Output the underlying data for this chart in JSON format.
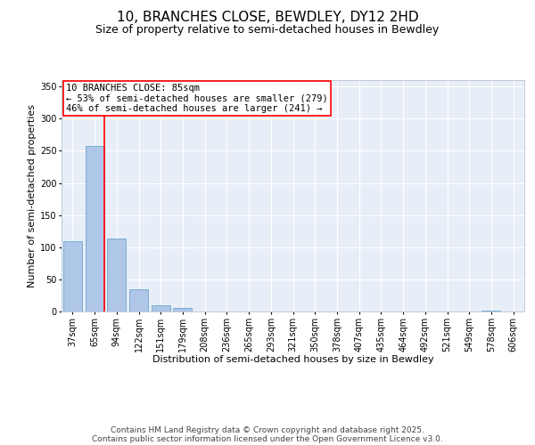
{
  "title_line1": "10, BRANCHES CLOSE, BEWDLEY, DY12 2HD",
  "title_line2": "Size of property relative to semi-detached houses in Bewdley",
  "xlabel": "Distribution of semi-detached houses by size in Bewdley",
  "ylabel": "Number of semi-detached properties",
  "categories": [
    "37sqm",
    "65sqm",
    "94sqm",
    "122sqm",
    "151sqm",
    "179sqm",
    "208sqm",
    "236sqm",
    "265sqm",
    "293sqm",
    "321sqm",
    "350sqm",
    "378sqm",
    "407sqm",
    "435sqm",
    "464sqm",
    "492sqm",
    "521sqm",
    "549sqm",
    "578sqm",
    "606sqm"
  ],
  "values": [
    109,
    258,
    113,
    34,
    10,
    5,
    0,
    0,
    0,
    0,
    0,
    0,
    0,
    0,
    0,
    0,
    0,
    0,
    0,
    2,
    0
  ],
  "bar_color": "#aec6e8",
  "bar_edge_color": "#7aafd4",
  "red_line_color": "#ff0000",
  "red_line_x": 1.45,
  "annotation_text": "10 BRANCHES CLOSE: 85sqm\n← 53% of semi-detached houses are smaller (279)\n46% of semi-detached houses are larger (241) →",
  "annotation_box_color": "#ffffff",
  "annotation_box_edge": "#ff0000",
  "ylim": [
    0,
    360
  ],
  "yticks": [
    0,
    50,
    100,
    150,
    200,
    250,
    300,
    350
  ],
  "background_color": "#e8eef7",
  "grid_color": "#ffffff",
  "footer_line1": "Contains HM Land Registry data © Crown copyright and database right 2025.",
  "footer_line2": "Contains public sector information licensed under the Open Government Licence v3.0.",
  "title_fontsize": 11,
  "subtitle_fontsize": 9,
  "axis_label_fontsize": 8,
  "tick_fontsize": 7,
  "annotation_fontsize": 7.5,
  "footer_fontsize": 6.5
}
